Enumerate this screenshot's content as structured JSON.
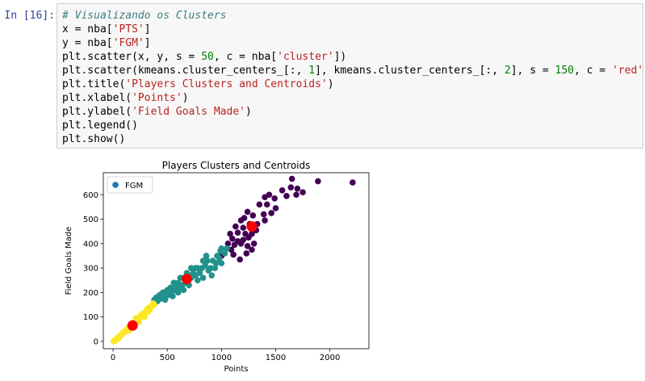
{
  "cell": {
    "prompt": "In [16]:",
    "code_lines": [
      [
        {
          "t": "# Visualizando os Clusters",
          "c": "comment"
        }
      ],
      [
        {
          "t": "x = nba[",
          "c": ""
        },
        {
          "t": "'PTS'",
          "c": "str"
        },
        {
          "t": "]",
          "c": ""
        }
      ],
      [
        {
          "t": "y = nba[",
          "c": ""
        },
        {
          "t": "'FGM'",
          "c": "str"
        },
        {
          "t": "]",
          "c": ""
        }
      ],
      [
        {
          "t": "plt.scatter(x, y, s = ",
          "c": ""
        },
        {
          "t": "50",
          "c": "num"
        },
        {
          "t": ", c = nba[",
          "c": ""
        },
        {
          "t": "'cluster'",
          "c": "str"
        },
        {
          "t": "])",
          "c": ""
        }
      ],
      [
        {
          "t": "plt.scatter(kmeans.cluster_centers_[:, ",
          "c": ""
        },
        {
          "t": "1",
          "c": "num"
        },
        {
          "t": "], kmeans.cluster_centers_[:, ",
          "c": ""
        },
        {
          "t": "2",
          "c": "num"
        },
        {
          "t": "], s = ",
          "c": ""
        },
        {
          "t": "150",
          "c": "num"
        },
        {
          "t": ", c = ",
          "c": ""
        },
        {
          "t": "'red'",
          "c": "str"
        },
        {
          "t": ")",
          "c": ""
        }
      ],
      [
        {
          "t": "plt.title(",
          "c": ""
        },
        {
          "t": "'Players Clusters and Centroids'",
          "c": "str"
        },
        {
          "t": ")",
          "c": ""
        }
      ],
      [
        {
          "t": "plt.xlabel(",
          "c": ""
        },
        {
          "t": "'Points'",
          "c": "str"
        },
        {
          "t": ")",
          "c": ""
        }
      ],
      [
        {
          "t": "plt.ylabel(",
          "c": ""
        },
        {
          "t": "'Field Goals Made'",
          "c": "str"
        },
        {
          "t": ")",
          "c": ""
        }
      ],
      [
        {
          "t": "plt.legend()",
          "c": ""
        }
      ],
      [
        {
          "t": "plt.show()",
          "c": ""
        }
      ]
    ]
  },
  "colors": {
    "cluster_purple": "#440154",
    "cluster_teal": "#21918c",
    "cluster_yellow": "#fde725",
    "centroid_red": "#ff0000",
    "legend_marker": "#1f77b4"
  },
  "chart_data": {
    "type": "scatter",
    "title": "Players Clusters and Centroids",
    "xlabel": "Points",
    "ylabel": "Field Goals Made",
    "xlim": [
      -90,
      2360
    ],
    "ylim": [
      -30,
      690
    ],
    "xticks": [
      0,
      500,
      1000,
      1500,
      2000
    ],
    "yticks": [
      0,
      100,
      200,
      300,
      400,
      500,
      600
    ],
    "legend": {
      "label": "FGM",
      "position": "upper-left"
    },
    "grid": false,
    "clusters": [
      {
        "color": "cluster_purple",
        "points": [
          [
            2210,
            650
          ],
          [
            1890,
            655
          ],
          [
            1650,
            665
          ],
          [
            1640,
            630
          ],
          [
            1700,
            625
          ],
          [
            1750,
            610
          ],
          [
            1690,
            600
          ],
          [
            1560,
            618
          ],
          [
            1600,
            595
          ],
          [
            1490,
            585
          ],
          [
            1440,
            600
          ],
          [
            1400,
            590
          ],
          [
            1420,
            560
          ],
          [
            1350,
            560
          ],
          [
            1500,
            545
          ],
          [
            1460,
            525
          ],
          [
            1390,
            520
          ],
          [
            1400,
            495
          ],
          [
            1240,
            530
          ],
          [
            1290,
            515
          ],
          [
            1210,
            505
          ],
          [
            1180,
            495
          ],
          [
            1260,
            480
          ],
          [
            1330,
            480
          ],
          [
            1130,
            470
          ],
          [
            1200,
            465
          ],
          [
            1150,
            445
          ],
          [
            1080,
            440
          ],
          [
            1220,
            440
          ],
          [
            1280,
            440
          ],
          [
            1320,
            455
          ],
          [
            1100,
            420
          ],
          [
            1150,
            410
          ],
          [
            1200,
            415
          ],
          [
            1250,
            425
          ],
          [
            1060,
            400
          ],
          [
            1120,
            395
          ],
          [
            1180,
            400
          ],
          [
            1240,
            390
          ],
          [
            1300,
            400
          ],
          [
            1280,
            375
          ],
          [
            1090,
            375
          ],
          [
            1110,
            355
          ],
          [
            1230,
            360
          ],
          [
            1000,
            350
          ],
          [
            1170,
            335
          ]
        ]
      },
      {
        "color": "cluster_teal",
        "points": [
          [
            1050,
            380
          ],
          [
            1000,
            380
          ],
          [
            990,
            370
          ],
          [
            1030,
            360
          ],
          [
            960,
            350
          ],
          [
            920,
            330
          ],
          [
            950,
            320
          ],
          [
            870,
            330
          ],
          [
            900,
            300
          ],
          [
            880,
            290
          ],
          [
            850,
            310
          ],
          [
            820,
            300
          ],
          [
            800,
            280
          ],
          [
            780,
            300
          ],
          [
            760,
            270
          ],
          [
            740,
            280
          ],
          [
            720,
            260
          ],
          [
            700,
            270
          ],
          [
            690,
            250
          ],
          [
            670,
            240
          ],
          [
            650,
            260
          ],
          [
            640,
            230
          ],
          [
            620,
            220
          ],
          [
            600,
            240
          ],
          [
            580,
            220
          ],
          [
            560,
            210
          ],
          [
            540,
            200
          ],
          [
            530,
            220
          ],
          [
            510,
            190
          ],
          [
            500,
            210
          ],
          [
            490,
            185
          ],
          [
            470,
            180
          ],
          [
            460,
            200
          ],
          [
            440,
            175
          ],
          [
            430,
            190
          ],
          [
            410,
            165
          ],
          [
            400,
            180
          ],
          [
            390,
            160
          ],
          [
            380,
            170
          ],
          [
            830,
            260
          ],
          [
            760,
            300
          ],
          [
            700,
            230
          ],
          [
            650,
            210
          ],
          [
            860,
            350
          ],
          [
            980,
            340
          ],
          [
            1000,
            320
          ],
          [
            720,
            300
          ],
          [
            600,
            200
          ],
          [
            550,
            185
          ],
          [
            480,
            170
          ],
          [
            910,
            270
          ],
          [
            940,
            300
          ],
          [
            780,
            250
          ],
          [
            680,
            280
          ],
          [
            620,
            260
          ],
          [
            560,
            240
          ],
          [
            830,
            330
          ]
        ]
      },
      {
        "color": "cluster_yellow",
        "points": [
          [
            380,
            150
          ],
          [
            360,
            145
          ],
          [
            340,
            130
          ],
          [
            320,
            135
          ],
          [
            300,
            120
          ],
          [
            280,
            110
          ],
          [
            260,
            100
          ],
          [
            250,
            105
          ],
          [
            230,
            90
          ],
          [
            210,
            85
          ],
          [
            200,
            80
          ],
          [
            180,
            70
          ],
          [
            170,
            65
          ],
          [
            150,
            60
          ],
          [
            140,
            55
          ],
          [
            120,
            45
          ],
          [
            100,
            40
          ],
          [
            90,
            35
          ],
          [
            70,
            25
          ],
          [
            60,
            20
          ],
          [
            40,
            15
          ],
          [
            30,
            10
          ],
          [
            15,
            5
          ],
          [
            5,
            0
          ],
          [
            20,
            3
          ],
          [
            50,
            12
          ],
          [
            80,
            28
          ],
          [
            110,
            38
          ],
          [
            130,
            50
          ],
          [
            160,
            58
          ],
          [
            190,
            75
          ],
          [
            220,
            88
          ],
          [
            240,
            95
          ],
          [
            270,
            112
          ],
          [
            290,
            118
          ],
          [
            310,
            128
          ],
          [
            330,
            138
          ],
          [
            350,
            142
          ],
          [
            370,
            155
          ],
          [
            210,
            95
          ],
          [
            180,
            60
          ],
          [
            240,
            80
          ],
          [
            290,
            100
          ],
          [
            320,
            120
          ],
          [
            150,
            45
          ]
        ]
      }
    ],
    "centroids": [
      [
        180,
        65
      ],
      [
        680,
        255
      ],
      [
        1280,
        470
      ]
    ]
  }
}
